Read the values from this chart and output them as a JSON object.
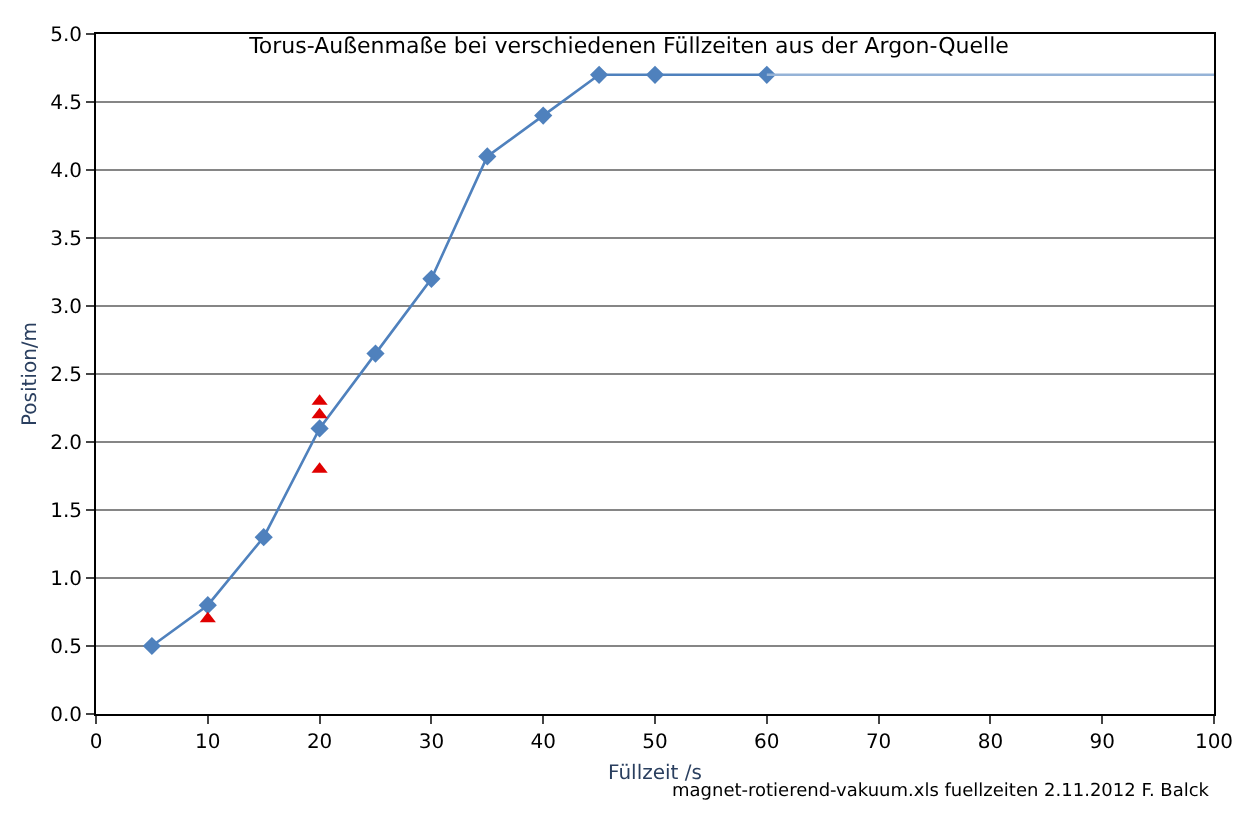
{
  "chart_data": {
    "type": "line",
    "title": "Torus-Außenmaße bei verschiedenen Füllzeiten aus der Argon-Quelle",
    "xlabel": "Füllzeit /s",
    "ylabel": "Position/m",
    "annotations": [
      "magnet-rotierend-vakuum.xls fuellzeiten 2.11.2012 F. Balck"
    ],
    "series": [
      {
        "color": "#4f81bd",
        "marker": "diamond",
        "x": [
          5,
          10,
          15,
          20,
          25,
          30,
          35,
          40,
          45,
          50,
          60
        ],
        "values": [
          0.5,
          0.8,
          1.3,
          2.1,
          2.65,
          3.2,
          4.1,
          4.4,
          4.7,
          4.7,
          4.7
        ]
      },
      {
        "color": "#95b3d7",
        "marker": "none",
        "x": [
          60,
          100
        ],
        "values": [
          4.7,
          4.7
        ]
      },
      {
        "type": "scatter",
        "color": "#e00000",
        "marker": "triangle",
        "x": [
          10,
          20,
          20,
          20
        ],
        "values": [
          0.7,
          2.3,
          2.2,
          1.8
        ]
      }
    ],
    "xlim": [
      0,
      100
    ],
    "xticks": [
      0,
      10,
      20,
      30,
      40,
      50,
      60,
      70,
      80,
      90,
      100
    ],
    "ylim": [
      0,
      5
    ],
    "yticks": [
      {
        "value": 0,
        "label": "0.0"
      },
      {
        "value": 0.5,
        "label": "0.5"
      },
      {
        "value": 1,
        "label": "1.0"
      },
      {
        "value": 1.5,
        "label": "1.5"
      },
      {
        "value": 2,
        "label": "2.0"
      },
      {
        "value": 2.5,
        "label": "2.5"
      },
      {
        "value": 3,
        "label": "3.0"
      },
      {
        "value": 3.5,
        "label": "3.5"
      },
      {
        "value": 4,
        "label": "4.0"
      },
      {
        "value": 4.5,
        "label": "4.5"
      },
      {
        "value": 5,
        "label": "5.0"
      }
    ],
    "grid": "y"
  }
}
